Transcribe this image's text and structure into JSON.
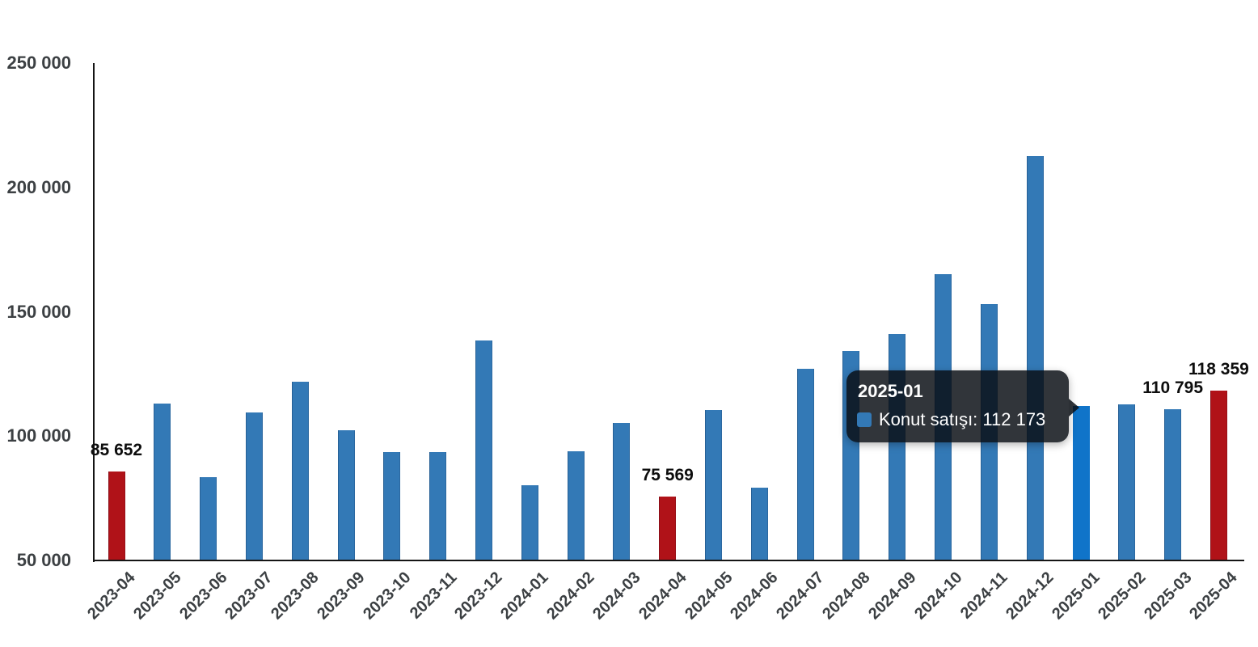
{
  "chart_data": {
    "type": "bar",
    "title": "",
    "xlabel": "",
    "ylabel": "",
    "categories": [
      "2023-04",
      "2023-05",
      "2023-06",
      "2023-07",
      "2023-08",
      "2023-09",
      "2023-10",
      "2023-11",
      "2023-12",
      "2024-01",
      "2024-02",
      "2024-03",
      "2024-04",
      "2024-05",
      "2024-06",
      "2024-07",
      "2024-08",
      "2024-09",
      "2024-10",
      "2024-11",
      "2024-12",
      "2025-01",
      "2025-02",
      "2025-03",
      "2025-04"
    ],
    "series": [
      {
        "name": "Konut satışı",
        "values": [
          85652,
          113000,
          83500,
          109500,
          122000,
          102500,
          93700,
          93500,
          138500,
          80300,
          93900,
          105400,
          75569,
          110600,
          79300,
          127000,
          134200,
          140900,
          165000,
          153000,
          212600,
          112173,
          112800,
          110795,
          118359
        ]
      }
    ],
    "ylim": [
      50000,
      250000
    ],
    "yticks": [
      {
        "label": "250 000",
        "value": 250000
      },
      {
        "label": "200 000",
        "value": 200000
      },
      {
        "label": "150 000",
        "value": 150000
      },
      {
        "label": "100 000",
        "value": 100000
      },
      {
        "label": "50 000",
        "value": 50000
      }
    ],
    "grid": "off",
    "legend_position": "none",
    "accent_bars": [
      {
        "category": "2023-04",
        "color": "#b01218"
      },
      {
        "category": "2024-04",
        "color": "#b01218"
      },
      {
        "category": "2025-04",
        "color": "#b01218"
      }
    ],
    "highlight_bar": {
      "category": "2025-01",
      "color": "#1074c9"
    },
    "value_labels": [
      {
        "category": "2023-04",
        "text": "85 652"
      },
      {
        "category": "2024-04",
        "text": "75 569"
      },
      {
        "category": "2025-03",
        "text": "110 795"
      },
      {
        "category": "2025-04",
        "text": "118 359"
      }
    ]
  },
  "tooltip": {
    "title": "2025-01",
    "text": "Konut satışı: 112 173",
    "swatch_color": "#3379b6"
  },
  "colors": {
    "bar_default": "#3379b6",
    "bar_april": "#b01218",
    "bar_highlight": "#1074c9",
    "axis_line": "#151515",
    "axis_text": "#3c4043",
    "value_label": "#0d0d0d",
    "tooltip_bg": "rgba(10,14,20,0.84)",
    "tooltip_text": "#ffffff"
  }
}
